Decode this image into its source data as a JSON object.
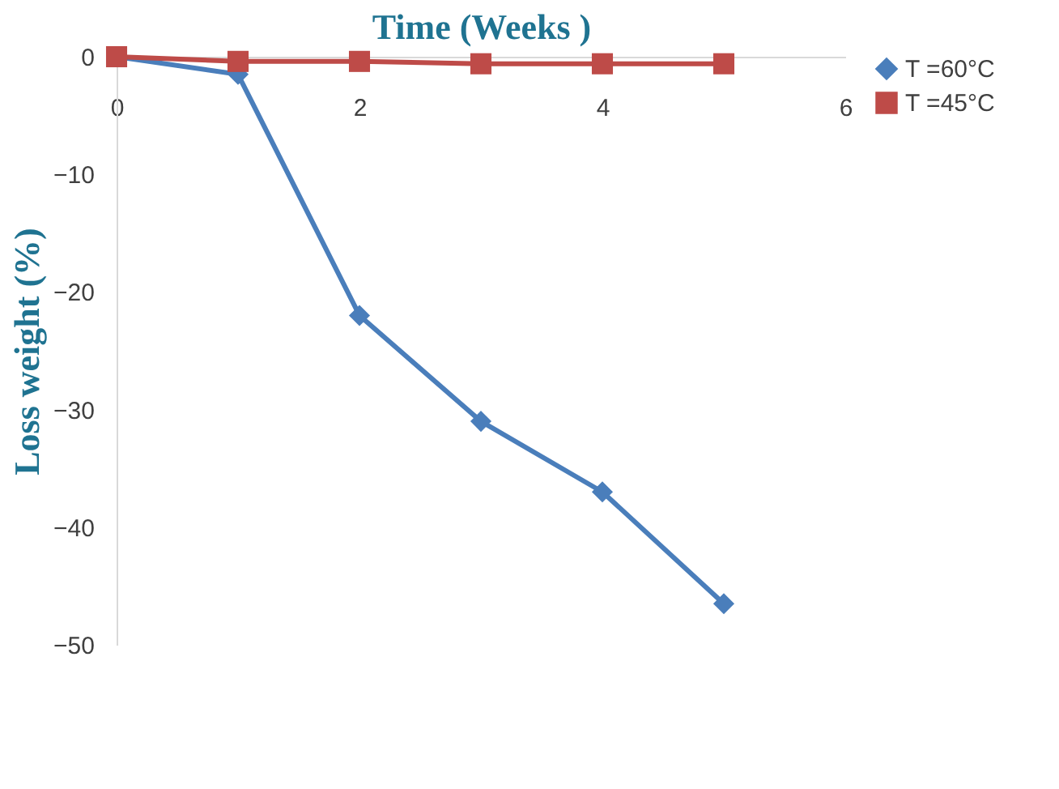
{
  "chart_data": {
    "type": "line",
    "xlabel": "Time (Weeks )",
    "ylabel": "Loss weight (%)",
    "x": [
      0,
      1,
      2,
      3,
      4,
      5
    ],
    "series": [
      {
        "name": "T =60°C",
        "color": "#4a7ebb",
        "marker": "diamond",
        "values": [
          0,
          -1.5,
          -22,
          -31,
          -37,
          -46.5
        ]
      },
      {
        "name": "T =45°C",
        "color": "#be4b48",
        "marker": "square",
        "values": [
          0,
          -0.4,
          -0.4,
          -0.6,
          -0.6,
          -0.6
        ]
      }
    ],
    "xlim": [
      0,
      6
    ],
    "xticks": [
      0,
      2,
      4,
      6
    ],
    "ylim": [
      -50,
      0
    ],
    "yticks": [
      0,
      -10,
      -20,
      -30,
      -40,
      -50
    ],
    "grid": false,
    "legend": "right",
    "line_style": "solid"
  }
}
